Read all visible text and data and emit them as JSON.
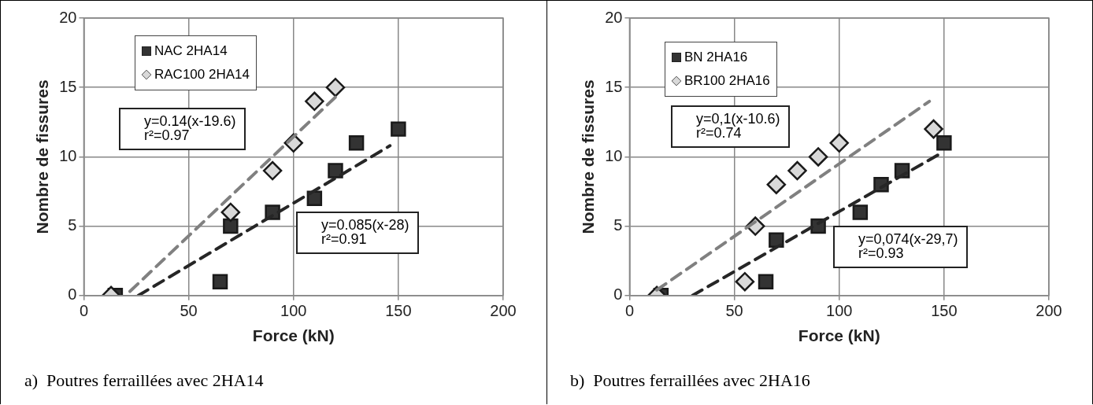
{
  "chart_data": [
    {
      "type": "scatter",
      "title": "a)  Poutres ferraillées avec 2HA14",
      "xlabel": "Force (kN)",
      "ylabel": "Nombre de fissures",
      "xlim": [
        0,
        200
      ],
      "xticks": [
        0,
        50,
        100,
        150,
        200
      ],
      "ylim": [
        0,
        20
      ],
      "yticks": [
        0,
        5,
        10,
        15,
        20
      ],
      "grid": true,
      "legend": "top left",
      "annotations": [
        "y=0.14(x-19.6)\nr²=0.97",
        "y=0.085(x-28)\nr²=0.91"
      ],
      "series": [
        {
          "name": "NAC 2HA14",
          "marker": "square",
          "color": "#333333",
          "x": [
            15,
            65,
            70,
            90,
            110,
            120,
            130,
            150
          ],
          "values": [
            0,
            1,
            5,
            6,
            7,
            9,
            11,
            12
          ]
        },
        {
          "name": "RAC100 2HA14",
          "marker": "diamond",
          "color": "#d9d9d9",
          "x": [
            13,
            70,
            90,
            100,
            110,
            120
          ],
          "values": [
            0,
            6,
            9,
            11,
            14,
            15
          ]
        },
        {
          "type": "line",
          "line_style": "dashed",
          "color": "#808080",
          "x": [
            22,
            120
          ],
          "values": [
            0.3,
            14.3
          ]
        },
        {
          "type": "line",
          "line_style": "dashed",
          "color": "#262626",
          "x": [
            26,
            146
          ],
          "values": [
            0,
            10.8
          ]
        }
      ]
    },
    {
      "type": "scatter",
      "title": "b)  Poutres ferraillées avec 2HA16",
      "xlabel": "Force (kN)",
      "ylabel": "Nombre de fissures",
      "xlim": [
        0,
        200
      ],
      "xticks": [
        0,
        50,
        100,
        150,
        200
      ],
      "ylim": [
        0,
        20
      ],
      "yticks": [
        0,
        5,
        10,
        15,
        20
      ],
      "grid": true,
      "legend": "top left",
      "annotations": [
        "y=0,1(x-10.6)\nr²=0.74",
        "y=0,074(x-29,7)\nr²=0.93"
      ],
      "series": [
        {
          "name": "BN 2HA16",
          "marker": "square",
          "color": "#333333",
          "x": [
            15,
            65,
            70,
            90,
            110,
            120,
            130,
            150
          ],
          "values": [
            0,
            1,
            4,
            5,
            6,
            8,
            9,
            11
          ]
        },
        {
          "name": "BR100 2HA16",
          "marker": "diamond",
          "color": "#d9d9d9",
          "x": [
            13,
            55,
            60,
            70,
            80,
            90,
            100,
            145
          ],
          "values": [
            0,
            1,
            5,
            8,
            9,
            10,
            11,
            12
          ]
        },
        {
          "type": "line",
          "line_style": "dashed",
          "color": "#808080",
          "x": [
            13,
            143
          ],
          "values": [
            0.4,
            14
          ]
        },
        {
          "type": "line",
          "line_style": "dashed",
          "color": "#262626",
          "x": [
            30,
            149
          ],
          "values": [
            0,
            10.3
          ]
        }
      ]
    }
  ]
}
